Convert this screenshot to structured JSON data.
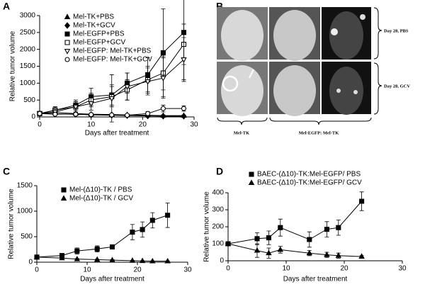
{
  "chart_data": [
    {
      "type": "line",
      "panel": "A",
      "xlabel": "Days after treatment",
      "ylabel": "Relative tumor volume",
      "xlim": [
        0,
        30
      ],
      "xticks": [
        0,
        10,
        20,
        30
      ],
      "ylim": [
        0,
        3000
      ],
      "yticks": [
        0,
        500,
        1000,
        1500,
        2000,
        2500,
        3000
      ],
      "series": [
        {
          "name": "Mel-TK+PBS",
          "color": "#000000",
          "marker": "triangle",
          "x": [
            0,
            3,
            7,
            10,
            14,
            17,
            21,
            24,
            28
          ],
          "values": [
            100,
            130,
            100,
            80,
            70,
            60,
            50,
            40,
            40
          ],
          "errors": [
            40,
            60,
            40,
            30,
            20,
            20,
            20,
            20,
            20
          ]
        },
        {
          "name": "Mel-TK+GCV",
          "color": "#000000",
          "marker": "diamond",
          "x": [
            0,
            3,
            7,
            10,
            14,
            17,
            21,
            24,
            28
          ],
          "values": [
            100,
            90,
            80,
            60,
            50,
            40,
            30,
            20,
            20
          ],
          "errors": [
            30,
            30,
            30,
            20,
            20,
            20,
            10,
            10,
            10
          ]
        },
        {
          "name": "Mel-EGFP+PBS",
          "color": "#000000",
          "marker": "square",
          "x": [
            0,
            3,
            7,
            10,
            14,
            17,
            21,
            24,
            28
          ],
          "values": [
            100,
            200,
            350,
            600,
            650,
            1000,
            1250,
            1900,
            2500
          ],
          "errors": [
            50,
            100,
            150,
            250,
            300,
            300,
            500,
            1300,
            1400
          ]
        },
        {
          "name": "Mel-EGFP+GCV",
          "color": "#000000",
          "marker": "square-open",
          "x": [
            0,
            3,
            7,
            10,
            14,
            17,
            21,
            24,
            28
          ],
          "values": [
            100,
            200,
            300,
            500,
            600,
            800,
            1100,
            1300,
            2150
          ],
          "errors": [
            50,
            100,
            150,
            200,
            300,
            300,
            400,
            500,
            600
          ]
        },
        {
          "name": "Mel-EGFP: Mel-TK+PBS",
          "color": "#000000",
          "marker": "triangle-down-open",
          "x": [
            0,
            3,
            7,
            10,
            14,
            17,
            21,
            24,
            28
          ],
          "values": [
            100,
            150,
            300,
            400,
            550,
            900,
            1050,
            1150,
            1700
          ],
          "errors": [
            50,
            80,
            150,
            200,
            700,
            400,
            400,
            600,
            650
          ]
        },
        {
          "name": "Mel-EGFP: Mel-TK+GCV",
          "color": "#000000",
          "marker": "circle-open",
          "x": [
            0,
            3,
            7,
            10,
            14,
            17,
            21,
            24,
            28
          ],
          "values": [
            100,
            80,
            80,
            70,
            60,
            50,
            100,
            250,
            250
          ],
          "errors": [
            40,
            30,
            30,
            30,
            20,
            20,
            60,
            100,
            80
          ]
        }
      ]
    },
    {
      "type": "line",
      "panel": "C",
      "xlabel": "Days after treatment",
      "ylabel": "Relative tumor volume",
      "xlim": [
        0,
        30
      ],
      "xticks": [
        0,
        10,
        20,
        30
      ],
      "ylim": [
        0,
        1500
      ],
      "yticks": [
        0,
        500,
        1000,
        1500
      ],
      "series": [
        {
          "name": "Mel-(Δ10)-TK / PBS",
          "color": "#000000",
          "marker": "square",
          "x": [
            0,
            5,
            8,
            12,
            15,
            19,
            21,
            23,
            26
          ],
          "values": [
            100,
            130,
            220,
            260,
            300,
            590,
            640,
            820,
            920
          ],
          "errors": [
            30,
            40,
            60,
            60,
            20,
            150,
            150,
            150,
            240
          ]
        },
        {
          "name": "Mel-(Δ10)-TK / GCV",
          "color": "#000000",
          "marker": "triangle",
          "x": [
            0,
            5,
            8,
            12,
            15,
            19,
            21,
            23,
            26
          ],
          "values": [
            100,
            80,
            60,
            50,
            40,
            30,
            25,
            20,
            20
          ],
          "errors": [
            20,
            15,
            10,
            10,
            10,
            5,
            5,
            5,
            5
          ]
        }
      ]
    },
    {
      "type": "line",
      "panel": "D",
      "xlabel": "Days after treatment",
      "ylabel": "Relative tumor volume",
      "xlim": [
        0,
        30
      ],
      "xticks": [
        0,
        10,
        20,
        30
      ],
      "ylim": [
        0,
        400
      ],
      "yticks": [
        0,
        100,
        200,
        300,
        400
      ],
      "series": [
        {
          "name": "BAEC-(Δ10)-TK:Mel-EGFP/ PBS",
          "color": "#000000",
          "marker": "square",
          "x": [
            0,
            5,
            7,
            9,
            14,
            17,
            19,
            23
          ],
          "values": [
            100,
            130,
            135,
            195,
            125,
            185,
            195,
            350
          ],
          "errors": [
            0,
            35,
            40,
            50,
            45,
            45,
            45,
            55
          ]
        },
        {
          "name": "BAEC-(Δ10)-TK:Mel-EGFP/ GCV",
          "color": "#000000",
          "marker": "triangle",
          "x": [
            0,
            5,
            7,
            9,
            14,
            17,
            19,
            23
          ],
          "values": [
            100,
            60,
            45,
            65,
            45,
            35,
            30,
            25
          ],
          "errors": [
            0,
            40,
            30,
            20,
            15,
            15,
            15,
            5
          ]
        }
      ]
    }
  ],
  "panel_b": {
    "panel": "B",
    "row_labels": [
      "Day 28, PBS",
      "Day 28, GCV"
    ],
    "column_labels": [
      "Mel-TK",
      "Mel-EGFP: Mel-TK"
    ]
  }
}
